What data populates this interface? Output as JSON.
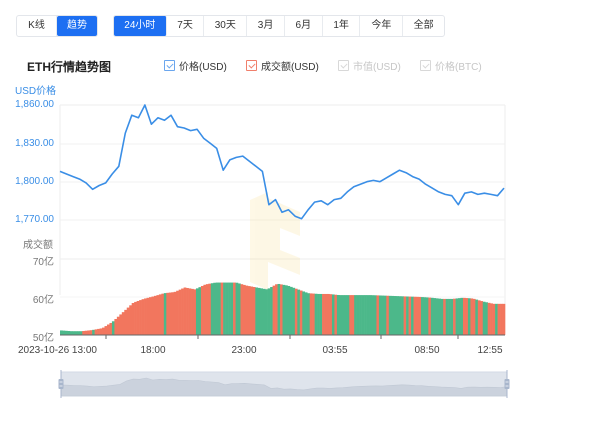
{
  "toolbar": {
    "view_modes": [
      {
        "label": "K线",
        "active": false
      },
      {
        "label": "趋势",
        "active": true
      }
    ],
    "ranges": [
      {
        "label": "24小时",
        "active": true
      },
      {
        "label": "7天",
        "active": false
      },
      {
        "label": "30天",
        "active": false
      },
      {
        "label": "3月",
        "active": false
      },
      {
        "label": "6月",
        "active": false
      },
      {
        "label": "1年",
        "active": false
      },
      {
        "label": "今年",
        "active": false
      },
      {
        "label": "全部",
        "active": false
      }
    ]
  },
  "chart_header": {
    "title": "ETH行情趋势图",
    "legend": [
      {
        "label": "价格(USD)",
        "checked": true,
        "color": "#6aa6ee"
      },
      {
        "label": "成交额(USD)",
        "checked": true,
        "color": "#f07f6b"
      },
      {
        "label": "市值(USD)",
        "checked": false,
        "color": "#d8d8d8"
      },
      {
        "label": "价格(BTC)",
        "checked": false,
        "color": "#d8d8d8"
      }
    ]
  },
  "colors": {
    "price_line": "#3a8ee6",
    "volume_up": "#4cb88a",
    "volume_down": "#f2765e",
    "active_button": "#1d6ff2",
    "grid": "#f0f0f0"
  },
  "chart_data": [
    {
      "type": "line",
      "title": "ETH行情趋势图",
      "ylabel": "USD价格",
      "yticks": [
        "1,860.00",
        "1,830.00",
        "1,800.00",
        "1,770.00"
      ],
      "ylim": [
        1770,
        1860
      ],
      "xlabel": "",
      "x": [
        "2023-10-26 13:00",
        "18:00",
        "23:00",
        "03:55",
        "08:50",
        "12:55"
      ],
      "series": [
        {
          "name": "价格(USD)",
          "values": [
            1808,
            1806,
            1804,
            1802,
            1799,
            1794,
            1797,
            1799,
            1806,
            1812,
            1838,
            1852,
            1850,
            1860,
            1845,
            1850,
            1848,
            1852,
            1843,
            1842,
            1840,
            1841,
            1834,
            1830,
            1826,
            1809,
            1817,
            1819,
            1820,
            1816,
            1812,
            1808,
            1782,
            1786,
            1776,
            1778,
            1773,
            1771,
            1778,
            1784,
            1785,
            1782,
            1786,
            1787,
            1792,
            1796,
            1798,
            1800,
            1801,
            1800,
            1803,
            1806,
            1809,
            1807,
            1804,
            1802,
            1798,
            1795,
            1792,
            1790,
            1789,
            1782,
            1791,
            1792,
            1790,
            1791,
            1790,
            1789,
            1795
          ]
        }
      ]
    },
    {
      "type": "bar",
      "title": "成交额",
      "ylabel": "成交额",
      "yticks": [
        "70亿",
        "60亿",
        "50亿"
      ],
      "ylim": [
        50,
        70
      ],
      "unit": "亿 USD",
      "x": [
        "2023-10-26 13:00",
        "18:00",
        "23:00",
        "03:55",
        "08:50",
        "12:55"
      ],
      "series": [
        {
          "name": "成交额(USD)",
          "values": [
            51.2,
            51.0,
            51.0,
            51.3,
            51.8,
            53.5,
            56.0,
            58.5,
            59.5,
            60.2,
            61.0,
            61.3,
            62.5,
            62.0,
            63.3,
            63.8,
            63.8,
            63.8,
            63.0,
            62.5,
            62.0,
            63.5,
            63.0,
            62.0,
            61.0,
            60.8,
            60.8,
            60.5,
            60.5,
            60.5,
            60.5,
            60.4,
            60.3,
            60.2,
            60.1,
            60.0,
            59.8,
            59.5,
            59.5,
            59.8,
            59.6,
            58.8,
            58.2,
            58.2
          ]
        }
      ]
    }
  ],
  "watermark": "logo-watermark"
}
